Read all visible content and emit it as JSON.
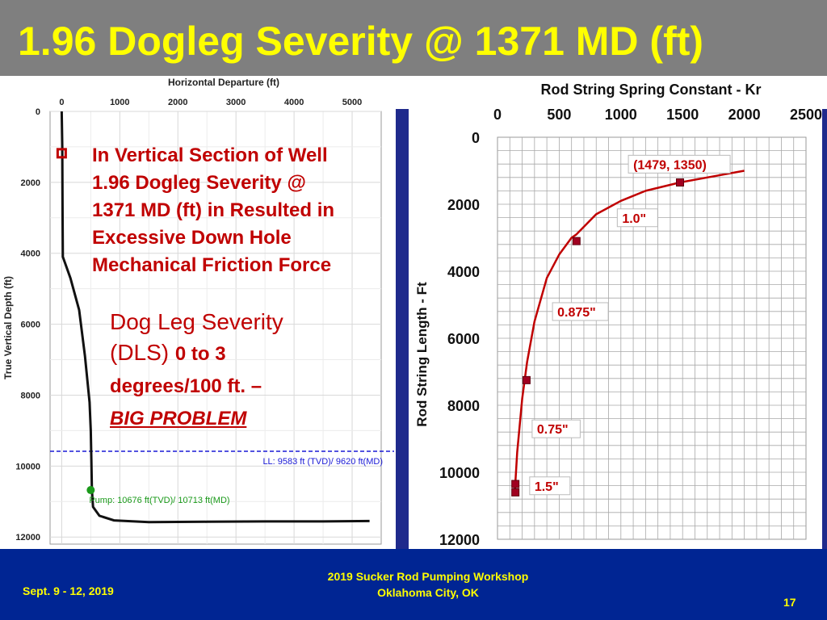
{
  "slide": {
    "title": "1.96 Dogleg Severity @ 1371 MD (ft)",
    "callout_lines": [
      "In Vertical Section of Well",
      "1.96 Dogleg Severity @",
      "1371 MD (ft) in Resulted in",
      "Excessive Down Hole",
      "Mechanical Friction Force"
    ],
    "dls_line1": "Dog Leg Severity",
    "dls_line2_a": "(DLS) ",
    "dls_line2_b": "0 to 3",
    "dls_line3": "degrees/100 ft. –",
    "dls_line4": "BIG PROBLEM",
    "page_number": "17"
  },
  "footer": {
    "date": "Sept. 9 - 12, 2019",
    "line1": "2019 Sucker Rod Pumping Workshop",
    "line2": "Oklahoma City, OK"
  },
  "colors": {
    "title_bg": "#7f7f7f",
    "title_text": "#ffff00",
    "footer_bg": "#002593",
    "accent_red": "#c00000",
    "ll_line": "#1a1ad6",
    "pump_green": "#1a9a1a"
  },
  "chart_data": [
    {
      "type": "line",
      "title": "",
      "xlabel": "Horizontal Departure (ft)",
      "ylabel": "True Vertical Depth (ft)",
      "xlim": [
        -200,
        5500
      ],
      "ylim": [
        12200,
        0
      ],
      "x_ticks": [
        "0",
        "1000",
        "2000",
        "3000",
        "4000",
        "5000"
      ],
      "y_ticks": [
        "0",
        "2000",
        "4000",
        "6000",
        "8000",
        "10000",
        "12000"
      ],
      "grid": true,
      "series": [
        {
          "x": [
            0,
            10,
            15,
            20,
            150,
            300,
            400,
            480,
            500,
            510,
            520,
            540,
            650,
            900,
            1500,
            2500,
            3500,
            4500,
            5300
          ],
          "y": [
            0,
            1000,
            3000,
            4100,
            4700,
            5600,
            6900,
            8200,
            9000,
            9800,
            10676,
            11150,
            11400,
            11530,
            11580,
            11570,
            11560,
            11560,
            11550
          ]
        }
      ],
      "markers": {
        "dogleg": {
          "x": 0,
          "y": 1180
        },
        "pump": {
          "x": 500,
          "y": 10676
        }
      },
      "annotations": {
        "ll_label": "LL: 9583 ft (TVD)/ 9620 ft(MD)",
        "ll_depth": 9583,
        "pump_label": "Pump: 10676 ft(TVD)/ 10713 ft(MD)"
      }
    },
    {
      "type": "line",
      "title": "Rod String Spring Constant - Kr",
      "xlabel": "",
      "ylabel": "Rod String Length - Ft",
      "xlim": [
        0,
        2500
      ],
      "ylim": [
        12000,
        0
      ],
      "x_ticks": [
        "0",
        "500",
        "1000",
        "1500",
        "2000",
        "2500"
      ],
      "y_ticks": [
        "0",
        "2000",
        "4000",
        "6000",
        "8000",
        "10000",
        "12000"
      ],
      "grid": true,
      "series": [
        {
          "x": [
            140,
            160,
            200,
            240,
            300,
            400,
            500,
            600,
            640,
            800,
            1000,
            1200,
            1479,
            1700,
            2000
          ],
          "y": [
            10600,
            9400,
            7800,
            6700,
            5500,
            4200,
            3500,
            3000,
            2900,
            2300,
            1900,
            1600,
            1350,
            1200,
            1000
          ]
        }
      ],
      "points": {
        "x": [
          145,
          145,
          235,
          640,
          1479
        ],
        "y": [
          10600,
          10350,
          7250,
          3100,
          1350
        ]
      },
      "annotations": [
        {
          "text": "(1479, 1350)",
          "x": 1100,
          "y": 900
        },
        {
          "text": "1.0\"",
          "x": 1010,
          "y": 2500
        },
        {
          "text": "0.875\"",
          "x": 485,
          "y": 5300
        },
        {
          "text": "0.75\"",
          "x": 320,
          "y": 8800
        },
        {
          "text": "1.5\"",
          "x": 300,
          "y": 10500
        }
      ]
    }
  ]
}
